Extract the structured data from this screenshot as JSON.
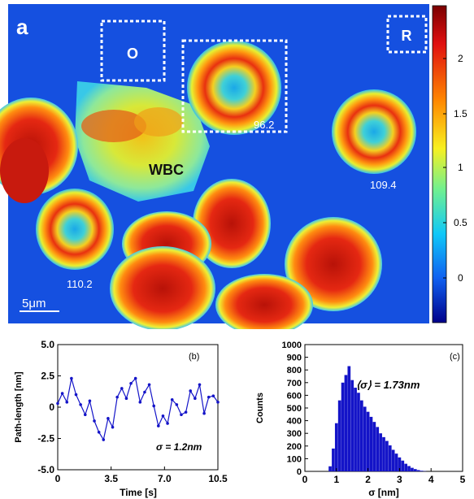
{
  "panel_a": {
    "label": "a",
    "roi_o": "O",
    "roi_r": "R",
    "wbc_label": "WBC",
    "cell_values": [
      "96.2",
      "109.4",
      "110.2"
    ],
    "scale_bar": "5μm",
    "colorbar_ticks": [
      "2",
      "1.5",
      "1",
      "0.5",
      "0"
    ]
  },
  "chart_data": [
    {
      "type": "line",
      "panel": "(b)",
      "xlabel": "Time [s]",
      "ylabel": "Path-length [nm]",
      "xlim": [
        0,
        10.5
      ],
      "ylim": [
        -5.0,
        5.0
      ],
      "xticks": [
        "0",
        "3.5",
        "7.0",
        "10.5"
      ],
      "yticks": [
        "5.0",
        "2.5",
        "0",
        "-2.5",
        "-5.0"
      ],
      "annotation": "σ = 1.2nm",
      "color": "#1414c8",
      "series": [
        {
          "x": [
            0.0,
            0.3,
            0.6,
            0.9,
            1.2,
            1.5,
            1.8,
            2.1,
            2.4,
            2.7,
            3.0,
            3.3,
            3.6,
            3.9,
            4.2,
            4.5,
            4.8,
            5.1,
            5.4,
            5.7,
            6.0,
            6.3,
            6.6,
            6.9,
            7.2,
            7.5,
            7.8,
            8.1,
            8.4,
            8.7,
            9.0,
            9.3,
            9.6,
            9.9,
            10.2,
            10.5
          ],
          "y": [
            0.3,
            1.1,
            0.4,
            2.3,
            1.0,
            0.2,
            -0.6,
            0.5,
            -1.1,
            -2.0,
            -2.6,
            -0.9,
            -1.6,
            0.8,
            1.5,
            0.7,
            1.9,
            2.3,
            0.4,
            1.2,
            1.8,
            0.1,
            -1.5,
            -0.7,
            -1.3,
            0.6,
            0.2,
            -0.6,
            -0.4,
            1.3,
            0.7,
            1.8,
            -0.5,
            0.8,
            0.9,
            0.4
          ]
        }
      ]
    },
    {
      "type": "bar",
      "panel": "(c)",
      "xlabel": "σ [nm]",
      "ylabel": "Counts",
      "xlim": [
        0,
        5
      ],
      "ylim": [
        0,
        1000
      ],
      "xticks": [
        "0",
        "1",
        "2",
        "3",
        "4",
        "5"
      ],
      "yticks": [
        "1000",
        "900",
        "800",
        "700",
        "600",
        "500",
        "400",
        "300",
        "200",
        "100",
        "0"
      ],
      "annotation": "⟨σ⟩ = 1.73nm",
      "color": "#1414c8",
      "x": [
        0.8,
        0.9,
        1.0,
        1.1,
        1.2,
        1.3,
        1.4,
        1.5,
        1.6,
        1.7,
        1.8,
        1.9,
        2.0,
        2.1,
        2.2,
        2.3,
        2.4,
        2.5,
        2.6,
        2.7,
        2.8,
        2.9,
        3.0,
        3.1,
        3.2,
        3.3,
        3.4,
        3.5,
        3.6,
        3.7,
        3.8
      ],
      "values": [
        40,
        180,
        380,
        560,
        700,
        760,
        830,
        720,
        660,
        620,
        560,
        510,
        470,
        430,
        390,
        350,
        300,
        270,
        240,
        205,
        170,
        140,
        110,
        85,
        60,
        42,
        28,
        18,
        10,
        5,
        2
      ]
    }
  ]
}
